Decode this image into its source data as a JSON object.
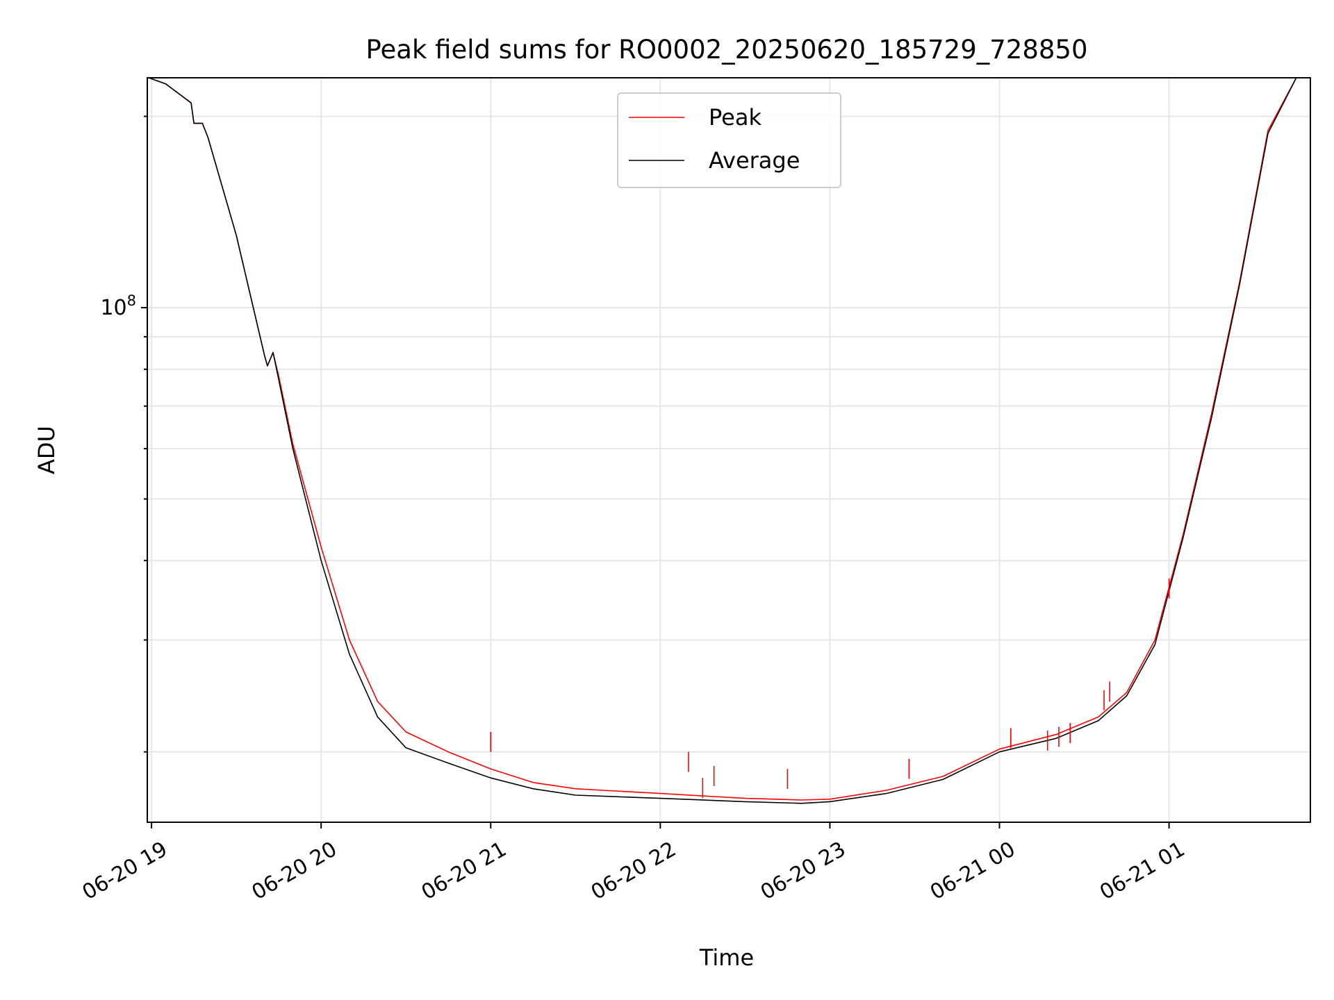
{
  "chart_data": {
    "type": "line",
    "title": "Peak field sums for RO0002_20250620_185729_728850",
    "xlabel": "Time",
    "ylabel": "ADU",
    "yscale": "log",
    "ylim": [
      15500000,
      230000000
    ],
    "xlim": [
      "2025-06-20T18:58:30",
      "2025-06-21T01:50:00"
    ],
    "grid": true,
    "legend": "upper center",
    "x_ticks": [
      {
        "t": "2025-06-20T19:00",
        "label": "06-20 19"
      },
      {
        "t": "2025-06-20T20:00",
        "label": "06-20 20"
      },
      {
        "t": "2025-06-20T21:00",
        "label": "06-20 21"
      },
      {
        "t": "2025-06-20T22:00",
        "label": "06-20 22"
      },
      {
        "t": "2025-06-20T23:00",
        "label": "06-20 23"
      },
      {
        "t": "2025-06-21T00:00",
        "label": "06-21 00"
      },
      {
        "t": "2025-06-21T01:00",
        "label": "06-21 01"
      }
    ],
    "y_tick_labels": [
      {
        "value": 100000000,
        "base": "10",
        "exp": "8"
      }
    ],
    "x": [
      "2025-06-20T18:59",
      "2025-06-20T19:05",
      "2025-06-20T19:14",
      "2025-06-20T19:15",
      "2025-06-20T19:18",
      "2025-06-20T19:20",
      "2025-06-20T19:30",
      "2025-06-20T19:40",
      "2025-06-20T19:41",
      "2025-06-20T19:43",
      "2025-06-20T19:45",
      "2025-06-20T19:50",
      "2025-06-20T20:00",
      "2025-06-20T20:10",
      "2025-06-20T20:20",
      "2025-06-20T20:30",
      "2025-06-20T20:45",
      "2025-06-20T21:00",
      "2025-06-20T21:15",
      "2025-06-20T21:30",
      "2025-06-20T22:00",
      "2025-06-20T22:30",
      "2025-06-20T22:50",
      "2025-06-20T23:00",
      "2025-06-20T23:20",
      "2025-06-20T23:40",
      "2025-06-21T00:00",
      "2025-06-21T00:20",
      "2025-06-21T00:35",
      "2025-06-21T00:45",
      "2025-06-21T00:55",
      "2025-06-21T01:05",
      "2025-06-21T01:15",
      "2025-06-21T01:25",
      "2025-06-21T01:35",
      "2025-06-21T01:45"
    ],
    "series": [
      {
        "name": "Peak",
        "color": "#ff0000",
        "values": [
          230000000,
          225000000,
          210000000,
          195000000,
          195000000,
          185000000,
          130000000,
          84000000,
          81000000,
          85000000,
          78000000,
          61000000,
          42000000,
          30000000,
          24000000,
          21500000,
          20000000,
          18800000,
          17900000,
          17500000,
          17200000,
          16900000,
          16800000,
          16850000,
          17400000,
          18300000,
          20200000,
          21300000,
          22700000,
          24800000,
          30000000,
          44000000,
          68000000,
          110000000,
          190000000,
          230000000
        ]
      },
      {
        "name": "Average",
        "color": "#000000",
        "values": [
          230000000,
          225000000,
          210000000,
          195000000,
          195000000,
          185000000,
          130000000,
          84000000,
          81000000,
          85000000,
          77000000,
          60000000,
          40000000,
          28500000,
          22700000,
          20300000,
          19200000,
          18200000,
          17500000,
          17100000,
          16900000,
          16700000,
          16600000,
          16700000,
          17200000,
          18100000,
          20000000,
          21000000,
          22400000,
          24500000,
          29500000,
          43500000,
          67000000,
          109000000,
          188000000,
          230000000
        ]
      }
    ],
    "spikes": [
      {
        "t": "2025-06-20T21:00",
        "value": 21500000
      },
      {
        "t": "2025-06-20T22:10",
        "value": 20000000
      },
      {
        "t": "2025-06-20T22:15",
        "value": 18200000
      },
      {
        "t": "2025-06-20T22:19",
        "value": 19000000
      },
      {
        "t": "2025-06-20T22:45",
        "value": 18800000
      },
      {
        "t": "2025-06-20T23:28",
        "value": 19500000
      },
      {
        "t": "2025-06-21T00:04",
        "value": 21800000
      },
      {
        "t": "2025-06-21T00:17",
        "value": 21600000
      },
      {
        "t": "2025-06-21T00:21",
        "value": 21900000
      },
      {
        "t": "2025-06-21T00:25",
        "value": 22200000
      },
      {
        "t": "2025-06-21T00:37",
        "value": 25000000
      },
      {
        "t": "2025-06-21T00:39",
        "value": 25800000
      },
      {
        "t": "2025-06-21T01:00",
        "value": 37500000
      }
    ]
  }
}
